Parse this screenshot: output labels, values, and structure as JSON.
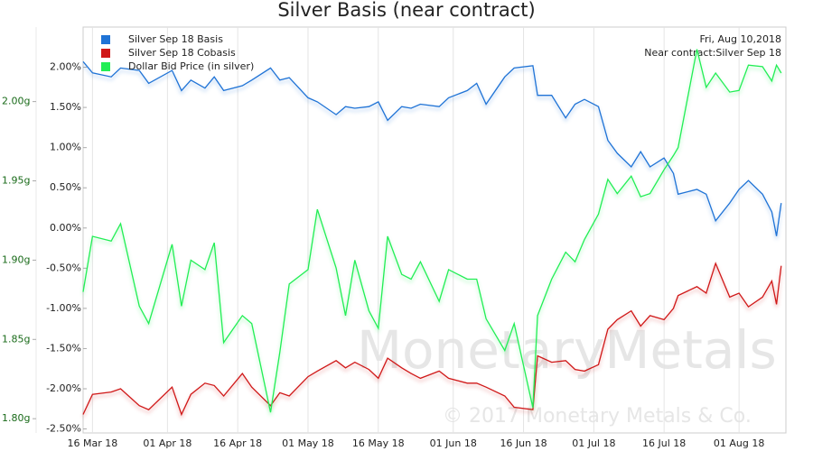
{
  "chart_data": {
    "type": "line",
    "title": "Silver Basis (near contract)",
    "annotations": [
      "Fri, Aug 10,2018",
      "Near contract:Silver Sep 18"
    ],
    "watermarks": [
      "MonetaryMetals",
      "© 2017 Monetary Metals & Co."
    ],
    "legend": "top-left",
    "grid": true,
    "x": [
      "2018-03-14",
      "2018-03-16",
      "2018-03-20",
      "2018-03-22",
      "2018-03-26",
      "2018-03-28",
      "2018-04-02",
      "2018-04-04",
      "2018-04-06",
      "2018-04-09",
      "2018-04-11",
      "2018-04-13",
      "2018-04-17",
      "2018-04-19",
      "2018-04-23",
      "2018-04-25",
      "2018-04-27",
      "2018-05-01",
      "2018-05-03",
      "2018-05-07",
      "2018-05-09",
      "2018-05-11",
      "2018-05-14",
      "2018-05-16",
      "2018-05-18",
      "2018-05-21",
      "2018-05-23",
      "2018-05-25",
      "2018-05-29",
      "2018-05-31",
      "2018-06-04",
      "2018-06-06",
      "2018-06-08",
      "2018-06-12",
      "2018-06-14",
      "2018-06-18",
      "2018-06-19",
      "2018-06-22",
      "2018-06-25",
      "2018-06-27",
      "2018-06-29",
      "2018-07-02",
      "2018-07-04",
      "2018-07-06",
      "2018-07-09",
      "2018-07-11",
      "2018-07-13",
      "2018-07-16",
      "2018-07-18",
      "2018-07-19",
      "2018-07-23",
      "2018-07-25",
      "2018-07-27",
      "2018-07-30",
      "2018-08-01",
      "2018-08-03",
      "2018-08-06",
      "2018-08-08",
      "2018-08-09",
      "2018-08-10"
    ],
    "xlim": [
      "2018-03-14",
      "2018-08-11"
    ],
    "xticks": [
      {
        "value": "2018-03-16",
        "label": "16 Mar 18"
      },
      {
        "value": "2018-04-01",
        "label": "01 Apr 18"
      },
      {
        "value": "2018-04-16",
        "label": "16 Apr 18"
      },
      {
        "value": "2018-05-01",
        "label": "01 May 18"
      },
      {
        "value": "2018-05-16",
        "label": "16 May 18"
      },
      {
        "value": "2018-06-01",
        "label": "01 Jun 18"
      },
      {
        "value": "2018-06-16",
        "label": "16 Jun 18"
      },
      {
        "value": "2018-07-01",
        "label": "01 Jul 18"
      },
      {
        "value": "2018-07-16",
        "label": "16 Jul 18"
      },
      {
        "value": "2018-08-01",
        "label": "01 Aug 18"
      }
    ],
    "ylim": [
      -2.55,
      2.5
    ],
    "yticks": [
      {
        "value": 2,
        "label": "2.00%"
      },
      {
        "value": 1.5,
        "label": "1.50%"
      },
      {
        "value": 1,
        "label": "1.00%"
      },
      {
        "value": 0.5,
        "label": "0.50%"
      },
      {
        "value": 0,
        "label": "0.00%"
      },
      {
        "value": -0.5,
        "label": "-0.50%"
      },
      {
        "value": -1,
        "label": "-1.00%"
      },
      {
        "value": -1.5,
        "label": "-1.50%"
      },
      {
        "value": -2,
        "label": "-2.00%"
      },
      {
        "value": -2.5,
        "label": "-2.50%"
      }
    ],
    "y2lim": [
      1.791,
      2.047
    ],
    "y2ticks": [
      {
        "value": 2,
        "label": "2.00g"
      },
      {
        "value": 1.95,
        "label": "1.95g"
      },
      {
        "value": 1.9,
        "label": "1.90g"
      },
      {
        "value": 1.85,
        "label": "1.85g"
      },
      {
        "value": 1.8,
        "label": "1.80g"
      }
    ],
    "series": [
      {
        "name": "Silver Sep 18 Basis",
        "color": "#1f73d6",
        "values": [
          2.07,
          1.93,
          1.88,
          1.99,
          1.96,
          1.8,
          1.96,
          1.71,
          1.84,
          1.74,
          1.88,
          1.71,
          1.77,
          1.84,
          1.99,
          1.84,
          1.87,
          1.62,
          1.57,
          1.41,
          1.51,
          1.49,
          1.51,
          1.57,
          1.34,
          1.51,
          1.49,
          1.54,
          1.51,
          1.62,
          1.71,
          1.8,
          1.54,
          1.88,
          1.99,
          2.02,
          1.65,
          1.65,
          1.37,
          1.54,
          1.6,
          1.51,
          1.09,
          0.93,
          0.76,
          0.95,
          0.76,
          0.87,
          0.68,
          0.42,
          0.48,
          0.42,
          0.09,
          0.31,
          0.48,
          0.59,
          0.42,
          0.2,
          -0.1,
          0.31
        ]
      },
      {
        "name": "Silver Sep 18 Cobasis",
        "color": "#d01818",
        "values": [
          -2.32,
          -2.07,
          -2.04,
          -2.0,
          -2.21,
          -2.26,
          -1.98,
          -2.32,
          -2.07,
          -1.93,
          -1.96,
          -2.09,
          -1.81,
          -1.98,
          -2.21,
          -2.05,
          -2.09,
          -1.85,
          -1.78,
          -1.65,
          -1.74,
          -1.67,
          -1.76,
          -1.87,
          -1.62,
          -1.74,
          -1.81,
          -1.87,
          -1.78,
          -1.87,
          -1.93,
          -1.93,
          -1.98,
          -2.09,
          -2.23,
          -2.26,
          -1.59,
          -1.67,
          -1.65,
          -1.76,
          -1.78,
          -1.7,
          -1.26,
          -1.14,
          -1.03,
          -1.22,
          -1.09,
          -1.14,
          -1.0,
          -0.84,
          -0.73,
          -0.81,
          -0.44,
          -0.86,
          -0.81,
          -0.98,
          -0.86,
          -0.66,
          -0.95,
          -0.47
        ]
      },
      {
        "name": "Dollar Bid Price (in silver)",
        "color": "#22ee55",
        "axis": "y2",
        "values": [
          1.88,
          1.915,
          1.912,
          1.923,
          1.871,
          1.86,
          1.91,
          1.871,
          1.9,
          1.894,
          1.911,
          1.848,
          1.865,
          1.86,
          1.804,
          1.842,
          1.885,
          1.894,
          1.932,
          1.895,
          1.865,
          1.9,
          1.868,
          1.857,
          1.915,
          1.891,
          1.888,
          1.899,
          1.874,
          1.894,
          1.888,
          1.888,
          1.863,
          1.843,
          1.86,
          1.807,
          1.865,
          1.888,
          1.905,
          1.899,
          1.913,
          1.929,
          1.951,
          1.942,
          1.953,
          1.94,
          1.942,
          1.957,
          1.966,
          1.971,
          2.033,
          2.009,
          2.018,
          2.006,
          2.007,
          2.023,
          2.022,
          2.013,
          2.023,
          2.018
        ]
      }
    ]
  }
}
